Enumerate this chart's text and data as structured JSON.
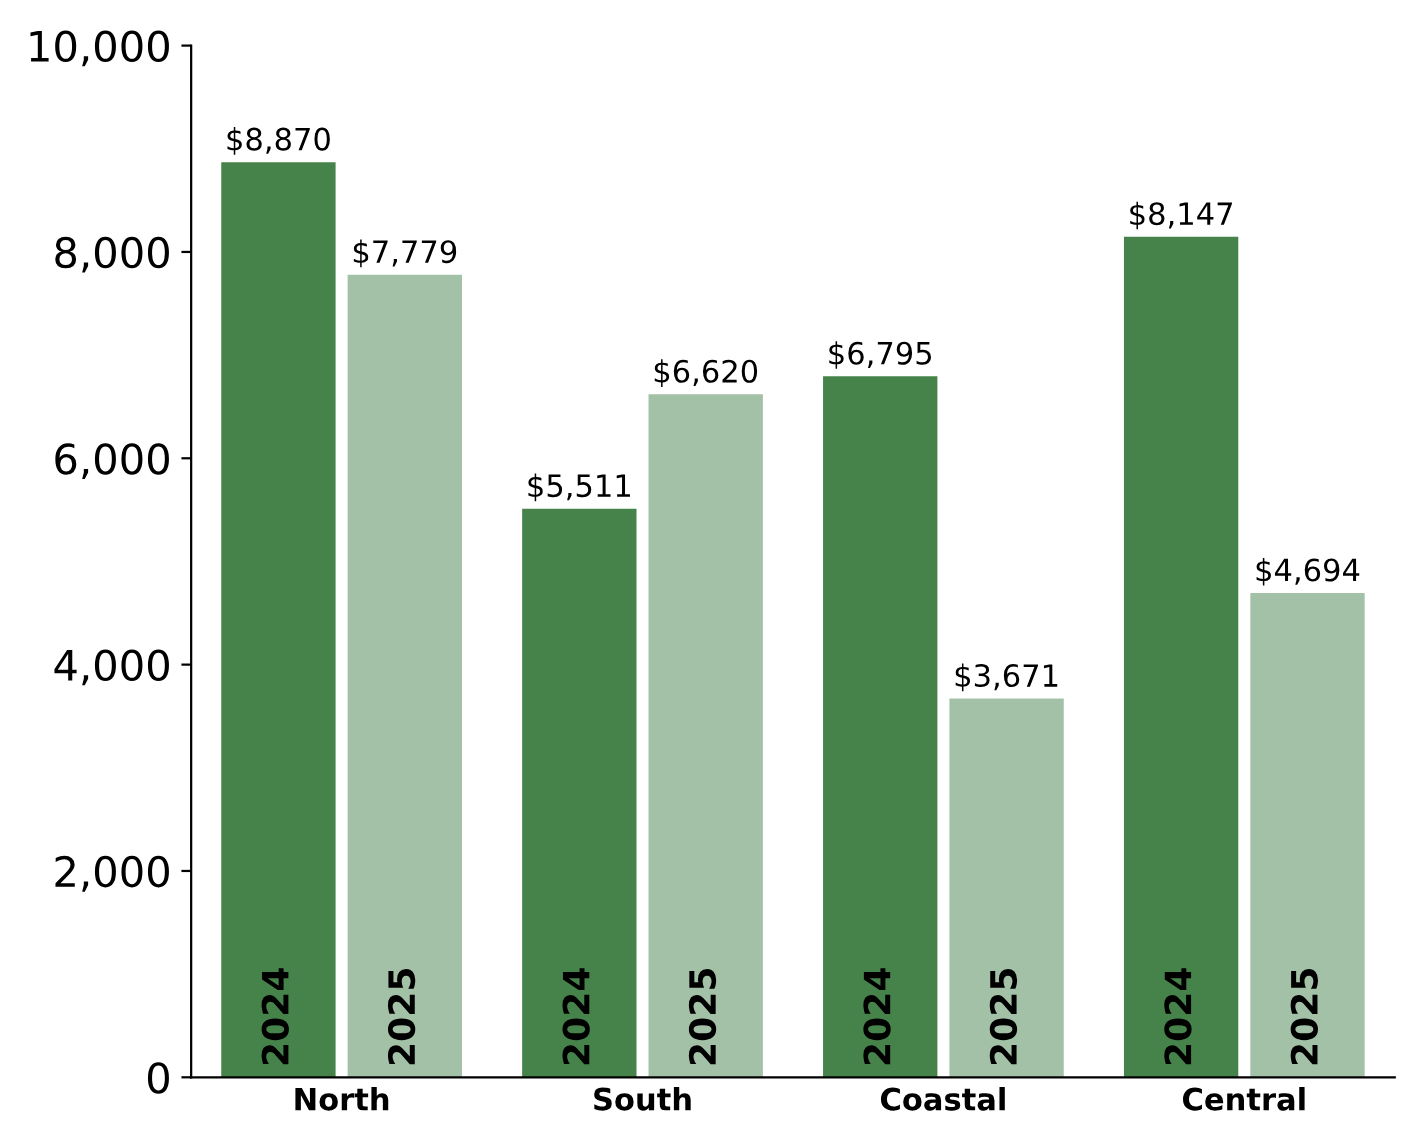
{
  "chart_data": {
    "type": "bar",
    "categories": [
      "North",
      "South",
      "Coastal",
      "Central"
    ],
    "series": [
      {
        "name": "2024",
        "color": "#46834a",
        "values": [
          8870,
          5511,
          6795,
          8147
        ],
        "value_labels": [
          "$8,870",
          "$5,511",
          "$6,795",
          "$8,147"
        ]
      },
      {
        "name": "2025",
        "color": "#a3c1a6",
        "values": [
          7779,
          6620,
          3671,
          4694
        ],
        "value_labels": [
          "$7,779",
          "$6,620",
          "$3,671",
          "$4,694"
        ]
      }
    ],
    "ylim": [
      0,
      10000
    ],
    "yticks": [
      0,
      {
        "value": 2000,
        "label": "2,000"
      },
      {
        "value": 4000,
        "label": "4,000"
      },
      {
        "value": 6000,
        "label": "6,000"
      },
      {
        "value": 8000,
        "label": "8,000"
      },
      {
        "value": 10000,
        "label": "10,000"
      }
    ],
    "grid": false,
    "legend": false
  }
}
